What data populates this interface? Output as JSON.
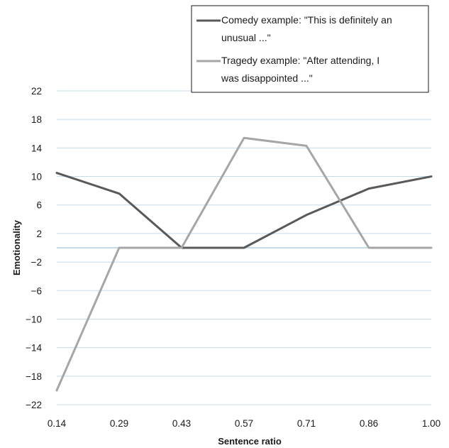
{
  "chart_data": {
    "type": "line",
    "title": "",
    "xlabel": "Sentence ratio",
    "ylabel": "Emotionality",
    "categories": [
      "0.14",
      "0.29",
      "0.43",
      "0.57",
      "0.71",
      "0.86",
      "1.00"
    ],
    "ylim": [
      -22,
      22
    ],
    "yticks": [
      "22",
      "18",
      "14",
      "10",
      "6",
      "2",
      "-2",
      "-6",
      "-10",
      "-14",
      "-18",
      "-22"
    ],
    "grid": true,
    "legend_position": "top-right",
    "series": [
      {
        "name": "Comedy example: \"This is definitely an unusual ...\"",
        "legend_lines": [
          "Comedy example: \"This is definitely an",
          "unusual ...\""
        ],
        "color": "#595959",
        "values": [
          10.5,
          7.6,
          0,
          0,
          4.6,
          8.3,
          10
        ]
      },
      {
        "name": "Tragedy example: \"After attending, I was disappointed ...\"",
        "legend_lines": [
          "Tragedy example: \"After attending, I",
          "was disappointed ...\""
        ],
        "color": "#a6a6a6",
        "values": [
          -20,
          0,
          0,
          15.4,
          14.3,
          0,
          0
        ]
      }
    ],
    "colors": {
      "gridline": "#c5dbe9",
      "zero_line": "#b4cde0",
      "axis_text": "#1a1a1a"
    }
  }
}
